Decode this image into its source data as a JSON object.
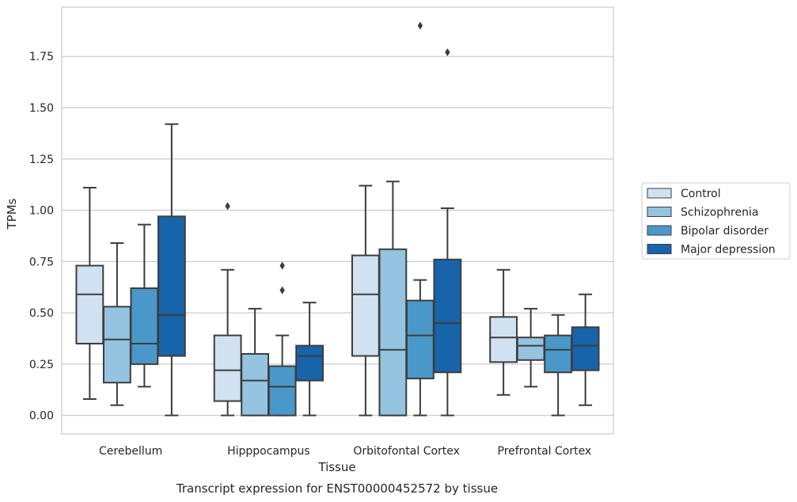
{
  "caption": "Transcript expression for ENST00000452572 by tissue",
  "chart_data": {
    "type": "box",
    "xlabel": "Tissue",
    "ylabel": "TPMs",
    "ylim": [
      -0.09,
      1.99
    ],
    "yticks": [
      0.0,
      0.25,
      0.5,
      0.75,
      1.0,
      1.25,
      1.5,
      1.75
    ],
    "ytick_labels": [
      "0.00",
      "0.25",
      "0.50",
      "0.75",
      "1.00",
      "1.25",
      "1.50",
      "1.75"
    ],
    "grid": "horizontal",
    "legend_position": "right",
    "categories": [
      "Cerebellum",
      "Hipppocampus",
      "Orbitofontal Cortex",
      "Prefrontal Cortex"
    ],
    "series": [
      {
        "name": "Control",
        "color": "#d0e1f2",
        "boxes": [
          {
            "whislo": 0.08,
            "q1": 0.35,
            "med": 0.59,
            "q3": 0.73,
            "whishi": 1.11,
            "fliers": []
          },
          {
            "whislo": 0.0,
            "q1": 0.07,
            "med": 0.22,
            "q3": 0.39,
            "whishi": 0.71,
            "fliers": [
              1.02
            ]
          },
          {
            "whislo": 0.0,
            "q1": 0.29,
            "med": 0.59,
            "q3": 0.78,
            "whishi": 1.12,
            "fliers": []
          },
          {
            "whislo": 0.1,
            "q1": 0.26,
            "med": 0.38,
            "q3": 0.48,
            "whishi": 0.71,
            "fliers": []
          }
        ]
      },
      {
        "name": "Schizophrenia",
        "color": "#94c4df",
        "boxes": [
          {
            "whislo": 0.05,
            "q1": 0.16,
            "med": 0.37,
            "q3": 0.53,
            "whishi": 0.84,
            "fliers": []
          },
          {
            "whislo": 0.0,
            "q1": 0.0,
            "med": 0.17,
            "q3": 0.3,
            "whishi": 0.52,
            "fliers": []
          },
          {
            "whislo": 0.0,
            "q1": 0.0,
            "med": 0.32,
            "q3": 0.81,
            "whishi": 1.14,
            "fliers": []
          },
          {
            "whislo": 0.14,
            "q1": 0.27,
            "med": 0.34,
            "q3": 0.38,
            "whishi": 0.52,
            "fliers": []
          }
        ]
      },
      {
        "name": "Bipolar disorder",
        "color": "#4a98c9",
        "boxes": [
          {
            "whislo": 0.14,
            "q1": 0.25,
            "med": 0.35,
            "q3": 0.62,
            "whishi": 0.93,
            "fliers": []
          },
          {
            "whislo": 0.0,
            "q1": 0.0,
            "med": 0.14,
            "q3": 0.24,
            "whishi": 0.39,
            "fliers": [
              0.61,
              0.73
            ]
          },
          {
            "whislo": 0.0,
            "q1": 0.18,
            "med": 0.39,
            "q3": 0.56,
            "whishi": 0.66,
            "fliers": [
              1.9
            ]
          },
          {
            "whislo": 0.0,
            "q1": 0.21,
            "med": 0.32,
            "q3": 0.39,
            "whishi": 0.49,
            "fliers": []
          }
        ]
      },
      {
        "name": "Major depression",
        "color": "#1764ab",
        "boxes": [
          {
            "whislo": 0.0,
            "q1": 0.29,
            "med": 0.49,
            "q3": 0.97,
            "whishi": 1.42,
            "fliers": []
          },
          {
            "whislo": 0.0,
            "q1": 0.17,
            "med": 0.29,
            "q3": 0.34,
            "whishi": 0.55,
            "fliers": []
          },
          {
            "whislo": 0.0,
            "q1": 0.21,
            "med": 0.45,
            "q3": 0.76,
            "whishi": 1.01,
            "fliers": [
              1.77
            ]
          },
          {
            "whislo": 0.05,
            "q1": 0.22,
            "med": 0.34,
            "q3": 0.43,
            "whishi": 0.59,
            "fliers": []
          }
        ]
      }
    ]
  }
}
